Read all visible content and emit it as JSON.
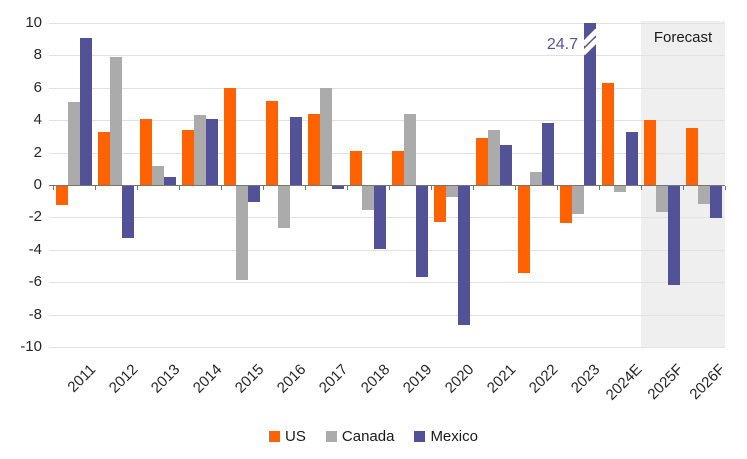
{
  "chart_data": {
    "type": "bar",
    "title": "",
    "categories": [
      "2011",
      "2012",
      "2013",
      "2014",
      "2015",
      "2016",
      "2017",
      "2018",
      "2019",
      "2020",
      "2021",
      "2022",
      "2023",
      "2024E",
      "2025F",
      "2026F"
    ],
    "series": [
      {
        "name": "US",
        "color": "#ff6200",
        "values": [
          -1.2,
          3.3,
          4.1,
          3.4,
          6.0,
          5.2,
          4.4,
          2.1,
          2.1,
          -2.2,
          2.9,
          -5.4,
          -2.3,
          6.3,
          4.0,
          3.5
        ]
      },
      {
        "name": "Canada",
        "color": "#ababab",
        "values": [
          5.1,
          7.9,
          1.2,
          4.3,
          -5.8,
          -2.6,
          6.0,
          -1.5,
          4.4,
          -0.7,
          3.4,
          0.8,
          -1.7,
          -0.4,
          -1.6,
          -1.1
        ]
      },
      {
        "name": "Mexico",
        "color": "#545296",
        "values": [
          9.1,
          -3.2,
          0.5,
          4.1,
          -1.0,
          4.2,
          -0.2,
          -3.9,
          -5.6,
          -8.6,
          2.5,
          3.8,
          24.7,
          3.3,
          -6.1,
          -2.0
        ]
      }
    ],
    "ylim": [
      -10,
      10
    ],
    "yticks": [
      10,
      8,
      6,
      4,
      2,
      0,
      -2,
      -4,
      -6,
      -8,
      -10
    ],
    "grid": true,
    "legend_position": "bottom",
    "annotations": [
      {
        "text": "24.7",
        "series": "Mexico",
        "category": "2023",
        "color": "#545296"
      }
    ],
    "clipped_bars": [
      {
        "series": "Mexico",
        "category": "2023",
        "value": 24.7
      }
    ],
    "forecast_band": {
      "label": "Forecast",
      "start_category": "2025F",
      "end_category": "2026F",
      "fill": "#efefef"
    },
    "colors": {
      "gridline": "#e2e2e2",
      "zero_line": "#757575",
      "axis_text": "#262626",
      "background": "#ffffff"
    }
  }
}
